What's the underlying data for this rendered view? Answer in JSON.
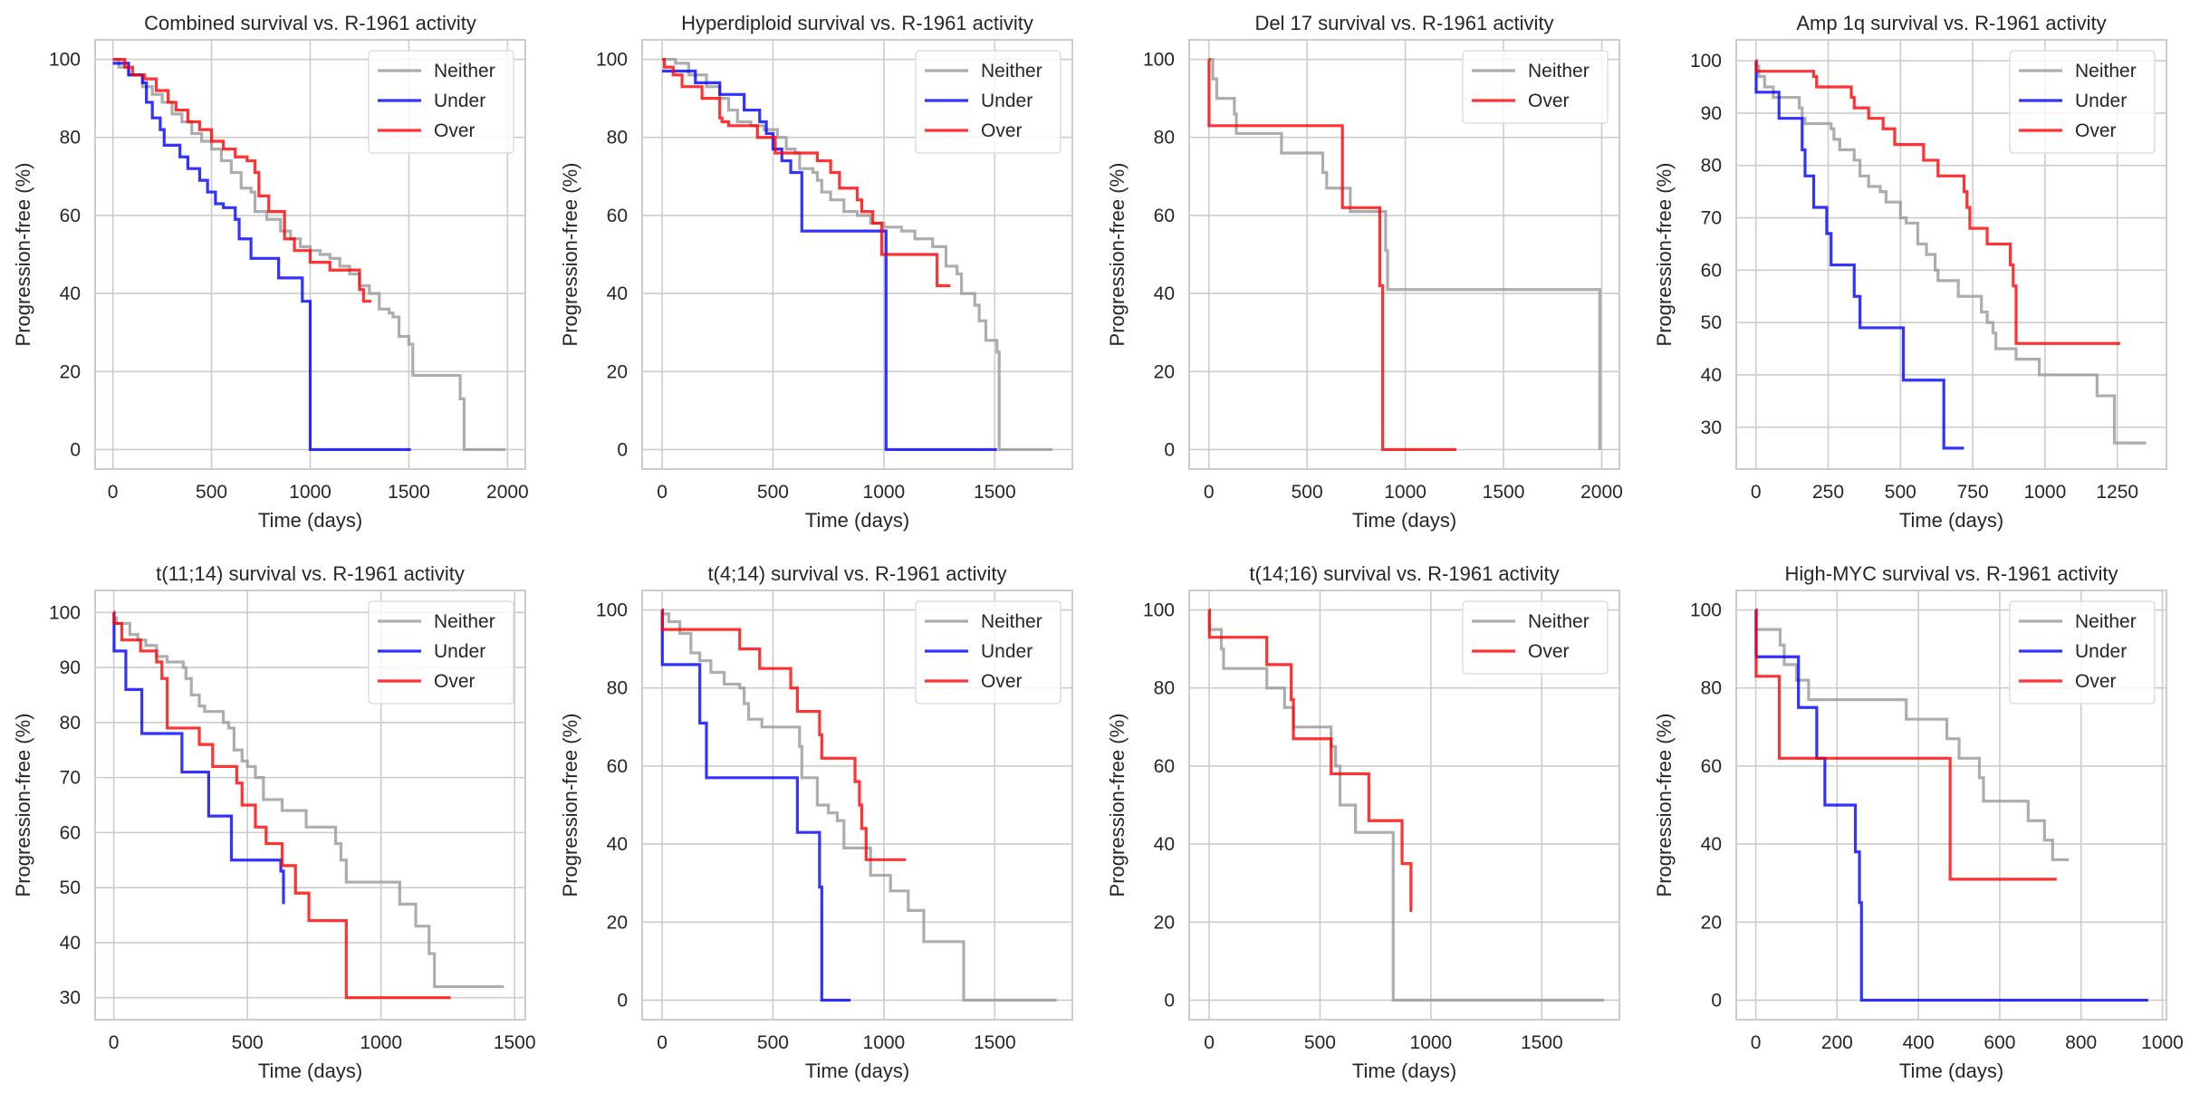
{
  "chart_data": [
    {
      "type": "line",
      "title": "Combined survival vs. R-1961 activity",
      "xlabel": "Time (days)",
      "ylabel": "Progression-free (%)",
      "xlim": [
        -90,
        2090
      ],
      "ylim": [
        -5,
        105
      ],
      "xticks": [
        0,
        500,
        1000,
        1500,
        2000
      ],
      "yticks": [
        0,
        20,
        40,
        60,
        80,
        100
      ],
      "grid": true,
      "legend": "top-right",
      "series": [
        {
          "name": "Neither",
          "color": "#999999",
          "x": [
            0,
            30,
            80,
            150,
            200,
            250,
            300,
            350,
            400,
            450,
            500,
            550,
            600,
            650,
            700,
            720,
            780,
            850,
            900,
            950,
            1000,
            1050,
            1100,
            1150,
            1200,
            1250,
            1300,
            1350,
            1400,
            1420,
            1450,
            1500,
            1520,
            1760,
            1780,
            1990
          ],
          "y": [
            100,
            98,
            96,
            93,
            91,
            89,
            86,
            84,
            81,
            79,
            77,
            74,
            71,
            67,
            66,
            61,
            59,
            56,
            54,
            52,
            51,
            50,
            49,
            47,
            45,
            42,
            40,
            36,
            35,
            34,
            29,
            27,
            19,
            13,
            0,
            0
          ]
        },
        {
          "name": "Under",
          "color": "#0000ff",
          "x": [
            0,
            80,
            150,
            170,
            200,
            240,
            260,
            340,
            380,
            440,
            480,
            520,
            560,
            620,
            640,
            700,
            760,
            840,
            960,
            1000,
            1510
          ],
          "y": [
            99,
            96,
            94,
            89,
            85,
            82,
            78,
            75,
            72,
            69,
            66,
            63,
            62,
            59,
            54,
            49,
            49,
            44,
            38,
            0,
            0
          ]
        },
        {
          "name": "Over",
          "color": "#ff0000",
          "x": [
            0,
            60,
            100,
            160,
            220,
            280,
            320,
            380,
            440,
            500,
            560,
            620,
            680,
            720,
            740,
            790,
            870,
            920,
            1000,
            1100,
            1200,
            1250,
            1270,
            1310
          ],
          "y": [
            100,
            98,
            96,
            95,
            92,
            89,
            87,
            84,
            82,
            79,
            77,
            75,
            74,
            71,
            65,
            61,
            54,
            51,
            48,
            46,
            46,
            41,
            38,
            38
          ]
        }
      ]
    },
    {
      "type": "line",
      "title": "Hyperdiploid survival vs. R-1961 activity",
      "xlabel": "Time (days)",
      "ylabel": "Progression-free (%)",
      "xlim": [
        -90,
        1850
      ],
      "ylim": [
        -5,
        105
      ],
      "xticks": [
        0,
        500,
        1000,
        1500
      ],
      "yticks": [
        0,
        20,
        40,
        60,
        80,
        100
      ],
      "grid": true,
      "legend": "top-right",
      "series": [
        {
          "name": "Neither",
          "color": "#999999",
          "x": [
            0,
            60,
            120,
            200,
            260,
            300,
            340,
            400,
            460,
            520,
            560,
            600,
            620,
            680,
            700,
            720,
            760,
            820,
            880,
            940,
            1000,
            1080,
            1140,
            1220,
            1280,
            1330,
            1350,
            1410,
            1430,
            1460,
            1510,
            1520,
            1760
          ],
          "y": [
            100,
            99,
            96,
            93,
            90,
            87,
            84,
            83,
            82,
            80,
            77,
            76,
            72,
            71,
            69,
            66,
            64,
            61,
            60,
            58,
            57,
            56,
            54,
            52,
            47,
            45,
            40,
            37,
            33,
            28,
            25,
            0,
            0
          ]
        },
        {
          "name": "Under",
          "color": "#0000ff",
          "x": [
            0,
            150,
            260,
            370,
            440,
            470,
            500,
            540,
            580,
            630,
            1000,
            1010,
            1510
          ],
          "y": [
            97,
            94,
            91,
            87,
            84,
            81,
            77,
            74,
            71,
            56,
            56,
            0,
            0
          ]
        },
        {
          "name": "Over",
          "color": "#ff0000",
          "x": [
            0,
            10,
            50,
            90,
            180,
            260,
            270,
            300,
            430,
            470,
            510,
            690,
            700,
            760,
            800,
            880,
            900,
            950,
            990,
            1230,
            1240,
            1300
          ],
          "y": [
            100,
            98,
            96,
            93,
            90,
            85,
            84,
            83,
            80,
            80,
            76,
            76,
            74,
            71,
            67,
            64,
            61,
            58,
            50,
            50,
            42,
            42
          ]
        }
      ]
    },
    {
      "type": "line",
      "title": "Del 17 survival vs. R-1961 activity",
      "xlabel": "Time (days)",
      "ylabel": "Progression-free (%)",
      "xlim": [
        -100,
        2090
      ],
      "ylim": [
        -5,
        105
      ],
      "xticks": [
        0,
        500,
        1000,
        1500,
        2000
      ],
      "yticks": [
        0,
        20,
        40,
        60,
        80,
        100
      ],
      "grid": true,
      "legend": "top-right",
      "series": [
        {
          "name": "Neither",
          "color": "#999999",
          "x": [
            0,
            20,
            40,
            130,
            140,
            370,
            580,
            600,
            720,
            900,
            910,
            1990
          ],
          "y": [
            100,
            95,
            90,
            86,
            81,
            76,
            71,
            67,
            61,
            51,
            41,
            0
          ]
        },
        {
          "name": "Over",
          "color": "#ff0000",
          "x": [
            0,
            1,
            680,
            870,
            885,
            1260
          ],
          "y": [
            100,
            83,
            62,
            42,
            0,
            0
          ]
        }
      ]
    },
    {
      "type": "line",
      "title": "Amp 1q survival vs. R-1961 activity",
      "xlabel": "Time (days)",
      "ylabel": "Progression-free (%)",
      "xlim": [
        -68,
        1420
      ],
      "ylim": [
        22,
        104
      ],
      "xticks": [
        0,
        250,
        500,
        750,
        1000,
        1250
      ],
      "yticks": [
        30,
        40,
        50,
        60,
        70,
        80,
        90,
        100
      ],
      "grid": true,
      "legend": "top-right",
      "series": [
        {
          "name": "Neither",
          "color": "#999999",
          "x": [
            0,
            10,
            30,
            60,
            140,
            150,
            160,
            170,
            260,
            270,
            290,
            340,
            360,
            390,
            430,
            450,
            500,
            520,
            560,
            590,
            620,
            630,
            700,
            720,
            780,
            800,
            820,
            830,
            900,
            980,
            1180,
            1240,
            1350
          ],
          "y": [
            99,
            97,
            95,
            93,
            93,
            91,
            89,
            88,
            87,
            85,
            83,
            81,
            78,
            76,
            75,
            73,
            70,
            69,
            65,
            63,
            60,
            58,
            55,
            55,
            52,
            50,
            48,
            45,
            43,
            40,
            36,
            27,
            27
          ]
        },
        {
          "name": "Under",
          "color": "#0000ff",
          "x": [
            0,
            1,
            80,
            160,
            170,
            200,
            245,
            260,
            340,
            360,
            510,
            650,
            720
          ],
          "y": [
            100,
            94,
            89,
            83,
            78,
            72,
            67,
            61,
            55,
            49,
            39,
            26,
            26
          ]
        },
        {
          "name": "Over",
          "color": "#ff0000",
          "x": [
            0,
            1,
            200,
            210,
            330,
            340,
            390,
            440,
            480,
            580,
            630,
            720,
            730,
            740,
            800,
            880,
            890,
            900,
            1260
          ],
          "y": [
            100,
            98,
            97,
            95,
            93,
            91,
            89,
            87,
            84,
            81,
            78,
            75,
            72,
            68,
            65,
            61,
            57,
            46,
            46
          ]
        }
      ]
    },
    {
      "type": "line",
      "title": "t(11;14) survival vs. R-1961 activity",
      "xlabel": "Time (days)",
      "ylabel": "Progression-free (%)",
      "xlim": [
        -70,
        1540
      ],
      "ylim": [
        26,
        104
      ],
      "xticks": [
        0,
        500,
        1000,
        1500
      ],
      "yticks": [
        30,
        40,
        50,
        60,
        70,
        80,
        90,
        100
      ],
      "grid": true,
      "legend": "top-right",
      "series": [
        {
          "name": "Neither",
          "color": "#999999",
          "x": [
            0,
            10,
            60,
            90,
            120,
            160,
            200,
            260,
            270,
            290,
            320,
            340,
            410,
            430,
            450,
            480,
            500,
            530,
            560,
            630,
            720,
            830,
            850,
            870,
            1070,
            1130,
            1180,
            1200,
            1460
          ],
          "y": [
            99,
            98,
            96,
            95,
            94,
            92,
            91,
            90,
            88,
            85,
            83,
            82,
            80,
            79,
            75,
            73,
            72,
            70,
            66,
            64,
            61,
            58,
            55,
            51,
            47,
            43,
            38,
            32,
            32
          ]
        },
        {
          "name": "Under",
          "color": "#0000ff",
          "x": [
            0,
            1,
            45,
            105,
            255,
            355,
            440,
            625,
            635
          ],
          "y": [
            100,
            93,
            86,
            78,
            71,
            63,
            55,
            53,
            47
          ]
        },
        {
          "name": "Over",
          "color": "#ff0000",
          "x": [
            0,
            1,
            30,
            100,
            160,
            180,
            200,
            320,
            370,
            460,
            480,
            530,
            570,
            630,
            680,
            730,
            870,
            1260
          ],
          "y": [
            100,
            98,
            95,
            93,
            91,
            88,
            79,
            76,
            72,
            69,
            65,
            61,
            58,
            54,
            49,
            44,
            30,
            30
          ]
        }
      ]
    },
    {
      "type": "line",
      "title": "t(4;14) survival vs. R-1961 activity",
      "xlabel": "Time (days)",
      "ylabel": "Progression-free (%)",
      "xlim": [
        -90,
        1850
      ],
      "ylim": [
        -5,
        105
      ],
      "xticks": [
        0,
        500,
        1000,
        1500
      ],
      "yticks": [
        0,
        20,
        40,
        60,
        80,
        100
      ],
      "grid": true,
      "legend": "top-right",
      "series": [
        {
          "name": "Neither",
          "color": "#999999",
          "x": [
            0,
            30,
            80,
            130,
            170,
            220,
            280,
            350,
            370,
            390,
            450,
            600,
            620,
            630,
            700,
            750,
            790,
            820,
            940,
            1030,
            1110,
            1180,
            1360,
            1780
          ],
          "y": [
            99,
            97,
            94,
            89,
            87,
            84,
            81,
            80,
            76,
            72,
            70,
            70,
            65,
            57,
            50,
            48,
            46,
            39,
            32,
            28,
            23,
            15,
            0,
            0
          ]
        },
        {
          "name": "Under",
          "color": "#0000ff",
          "x": [
            0,
            1,
            170,
            200,
            610,
            710,
            720,
            850
          ],
          "y": [
            100,
            86,
            71,
            57,
            43,
            29,
            0,
            0
          ]
        },
        {
          "name": "Over",
          "color": "#ff0000",
          "x": [
            0,
            1,
            350,
            440,
            580,
            610,
            710,
            720,
            870,
            890,
            900,
            920,
            1100
          ],
          "y": [
            100,
            95,
            90,
            85,
            80,
            74,
            68,
            62,
            56,
            50,
            44,
            36,
            36
          ]
        }
      ]
    },
    {
      "type": "line",
      "title": "t(14;16) survival vs. R-1961 activity",
      "xlabel": "Time (days)",
      "ylabel": "Progression-free (%)",
      "xlim": [
        -90,
        1850
      ],
      "ylim": [
        -5,
        105
      ],
      "xticks": [
        0,
        500,
        1000,
        1500
      ],
      "yticks": [
        0,
        20,
        40,
        60,
        80,
        100
      ],
      "grid": true,
      "legend": "top-right",
      "series": [
        {
          "name": "Neither",
          "color": "#999999",
          "x": [
            0,
            1,
            55,
            65,
            260,
            340,
            380,
            550,
            570,
            590,
            660,
            830,
            1780
          ],
          "y": [
            100,
            95,
            90,
            85,
            80,
            75,
            70,
            65,
            60,
            50,
            43,
            0,
            0
          ]
        },
        {
          "name": "Over",
          "color": "#ff0000",
          "x": [
            0,
            1,
            260,
            370,
            380,
            550,
            720,
            870,
            910,
            915
          ],
          "y": [
            100,
            93,
            86,
            77,
            67,
            58,
            46,
            35,
            23,
            23
          ]
        }
      ]
    },
    {
      "type": "line",
      "title": "High-MYC survival vs. R-1961 activity",
      "xlabel": "Time (days)",
      "ylabel": "Progression-free (%)",
      "xlim": [
        -48,
        1010
      ],
      "ylim": [
        -5,
        105
      ],
      "xticks": [
        0,
        200,
        400,
        600,
        800,
        1000
      ],
      "yticks": [
        0,
        20,
        40,
        60,
        80,
        100
      ],
      "grid": true,
      "legend": "top-right",
      "series": [
        {
          "name": "Neither",
          "color": "#999999",
          "x": [
            0,
            1,
            60,
            70,
            100,
            130,
            370,
            470,
            500,
            550,
            560,
            670,
            710,
            730,
            770
          ],
          "y": [
            100,
            95,
            91,
            86,
            82,
            77,
            72,
            67,
            62,
            57,
            51,
            46,
            41,
            36,
            36
          ]
        },
        {
          "name": "Under",
          "color": "#0000ff",
          "x": [
            0,
            1,
            105,
            150,
            170,
            245,
            255,
            260,
            965
          ],
          "y": [
            100,
            88,
            75,
            62,
            50,
            38,
            25,
            0,
            0
          ]
        },
        {
          "name": "Over",
          "color": "#ff0000",
          "x": [
            0,
            1,
            58,
            478,
            740
          ],
          "y": [
            100,
            83,
            62,
            31,
            31
          ]
        }
      ]
    }
  ]
}
